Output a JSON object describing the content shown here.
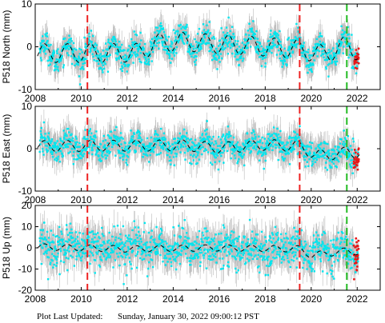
{
  "footer": {
    "label": "Plot Last Updated:",
    "value": "Sunday, January 30, 2022 09:00:12 PST"
  },
  "colors": {
    "errorbar": "#b4b4b4",
    "points": "#00e5ee",
    "model": "#000000",
    "recent": "#e81818",
    "offset_red": "#ee2222",
    "offset_green": "#22bb22"
  },
  "chart_data": [
    {
      "type": "scatter",
      "ylabel": "P518 North (mm)",
      "xlim": [
        2008,
        2023
      ],
      "ylim": [
        -10,
        10
      ],
      "xticks": [
        "2008",
        "2010",
        "2012",
        "2014",
        "2016",
        "2018",
        "2020",
        "2022"
      ],
      "yticks": [
        "10",
        "0",
        "-10"
      ],
      "yticks_values": [
        10,
        0,
        -10
      ],
      "seasonal_amplitude": 2.2,
      "trend_knots": [
        [
          2008.0,
          -1.5
        ],
        [
          2012.5,
          -1.4
        ],
        [
          2013.2,
          0.8
        ],
        [
          2014.5,
          1.2
        ],
        [
          2016.0,
          0.6
        ],
        [
          2017.5,
          0.2
        ],
        [
          2019.5,
          -0.6
        ],
        [
          2020.5,
          -1.8
        ],
        [
          2021.6,
          0.4
        ],
        [
          2022.1,
          -1.5
        ]
      ],
      "noise": 1.5,
      "errorbar": 2.8,
      "vertical_lines": [
        {
          "x": 2010.27,
          "color": "red"
        },
        {
          "x": 2019.5,
          "color": "red"
        },
        {
          "x": 2021.55,
          "color": "green"
        }
      ]
    },
    {
      "type": "scatter",
      "ylabel": "P518 East (mm)",
      "xlim": [
        2008,
        2023
      ],
      "ylim": [
        -10,
        10
      ],
      "xticks": [
        "2008",
        "2010",
        "2012",
        "2014",
        "2016",
        "2018",
        "2020",
        "2022"
      ],
      "yticks": [
        "10",
        "0",
        "-10"
      ],
      "yticks_values": [
        10,
        0,
        -10
      ],
      "seasonal_amplitude": 1.3,
      "trend_knots": [
        [
          2008.0,
          0.6
        ],
        [
          2014.5,
          0.8
        ],
        [
          2016.0,
          0.2
        ],
        [
          2018.0,
          0.9
        ],
        [
          2019.5,
          0.6
        ],
        [
          2020.2,
          -1.6
        ],
        [
          2021.3,
          -1.2
        ],
        [
          2021.6,
          -0.6
        ],
        [
          2022.1,
          -1.0
        ]
      ],
      "noise": 1.5,
      "errorbar": 3.0,
      "vertical_lines": [
        {
          "x": 2010.27,
          "color": "red"
        },
        {
          "x": 2019.5,
          "color": "red"
        },
        {
          "x": 2021.55,
          "color": "green"
        }
      ]
    },
    {
      "type": "scatter",
      "ylabel": "P518 Up (mm)",
      "xlim": [
        2008,
        2023
      ],
      "ylim": [
        -20,
        20
      ],
      "xticks": [
        "2008",
        "2010",
        "2012",
        "2014",
        "2016",
        "2018",
        "2020",
        "2022"
      ],
      "yticks": [
        "20",
        "10",
        "0",
        "-10",
        "-20"
      ],
      "yticks_values": [
        20,
        10,
        0,
        -10,
        -20
      ],
      "seasonal_amplitude": 1.5,
      "trend_knots": [
        [
          2008.0,
          0.5
        ],
        [
          2012.0,
          -0.5
        ],
        [
          2016.0,
          0.0
        ],
        [
          2019.5,
          -0.5
        ],
        [
          2020.0,
          -3.5
        ],
        [
          2021.5,
          -1.5
        ],
        [
          2022.1,
          -2.0
        ]
      ],
      "noise": 4.5,
      "errorbar": 7.0,
      "vertical_lines": [
        {
          "x": 2010.27,
          "color": "red"
        },
        {
          "x": 2019.5,
          "color": "red"
        },
        {
          "x": 2021.55,
          "color": "green"
        }
      ]
    }
  ]
}
